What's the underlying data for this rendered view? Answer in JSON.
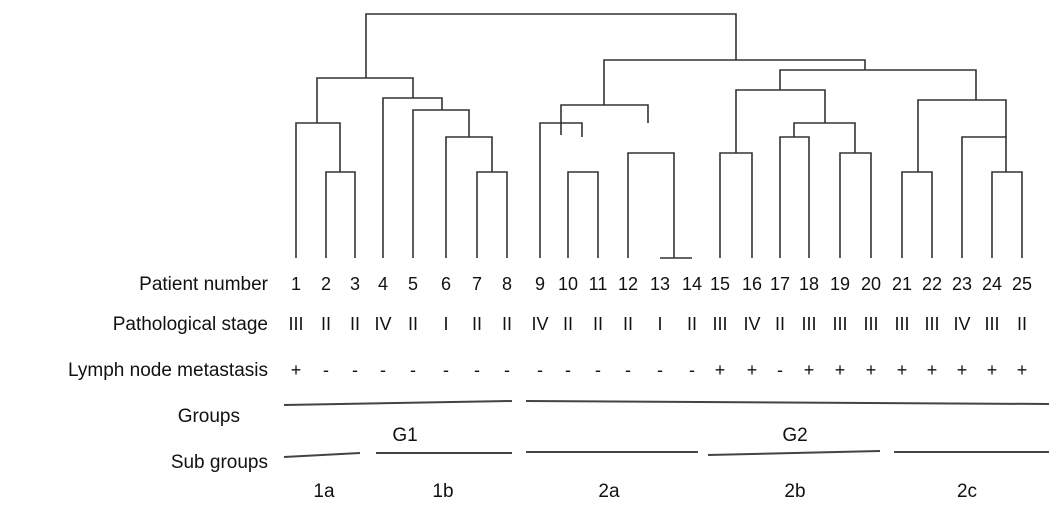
{
  "row_labels": {
    "patient_number": "Patient number",
    "pathological_stage": "Pathological stage",
    "lymph_node_metastasis": "Lymph node metastasis",
    "groups": "Groups",
    "sub_groups": "Sub groups"
  },
  "patients": [
    "1",
    "2",
    "3",
    "4",
    "5",
    "6",
    "7",
    "8",
    "9",
    "10",
    "11",
    "12",
    "13",
    "14",
    "15",
    "16",
    "17",
    "18",
    "19",
    "20",
    "21",
    "22",
    "23",
    "24",
    "25"
  ],
  "stages": [
    "III",
    "II",
    "II",
    "IV",
    "II",
    "I",
    "II",
    "II",
    "IV",
    "II",
    "II",
    "II",
    "I",
    "II",
    "III",
    "IV",
    "II",
    "III",
    "III",
    "III",
    "III",
    "III",
    "IV",
    "III",
    "II"
  ],
  "lymph_node": [
    "+",
    "-",
    "-",
    "-",
    "-",
    "-",
    "-",
    "-",
    "-",
    "-",
    "-",
    "-",
    "-",
    "-",
    "+",
    "+",
    "-",
    "+",
    "+",
    "+",
    "+",
    "+",
    "+",
    "+",
    "+"
  ],
  "groups": [
    {
      "label": "G1",
      "from": 1,
      "to": 8
    },
    {
      "label": "G2",
      "from": 9,
      "to": 25
    }
  ],
  "subgroups": [
    {
      "label": "1a",
      "from": 1,
      "to": 3
    },
    {
      "label": "1b",
      "from": 4,
      "to": 8
    },
    {
      "label": "2a",
      "from": 9,
      "to": 14
    },
    {
      "label": "2b",
      "from": 15,
      "to": 20
    },
    {
      "label": "2c",
      "from": 21,
      "to": 25
    }
  ],
  "dendrogram": {
    "type": "hierarchical-clustering",
    "leaf_order": [
      1,
      2,
      3,
      4,
      5,
      6,
      7,
      8,
      9,
      10,
      11,
      12,
      13,
      14,
      15,
      16,
      17,
      18,
      19,
      20,
      21,
      22,
      23,
      24,
      25
    ]
  }
}
